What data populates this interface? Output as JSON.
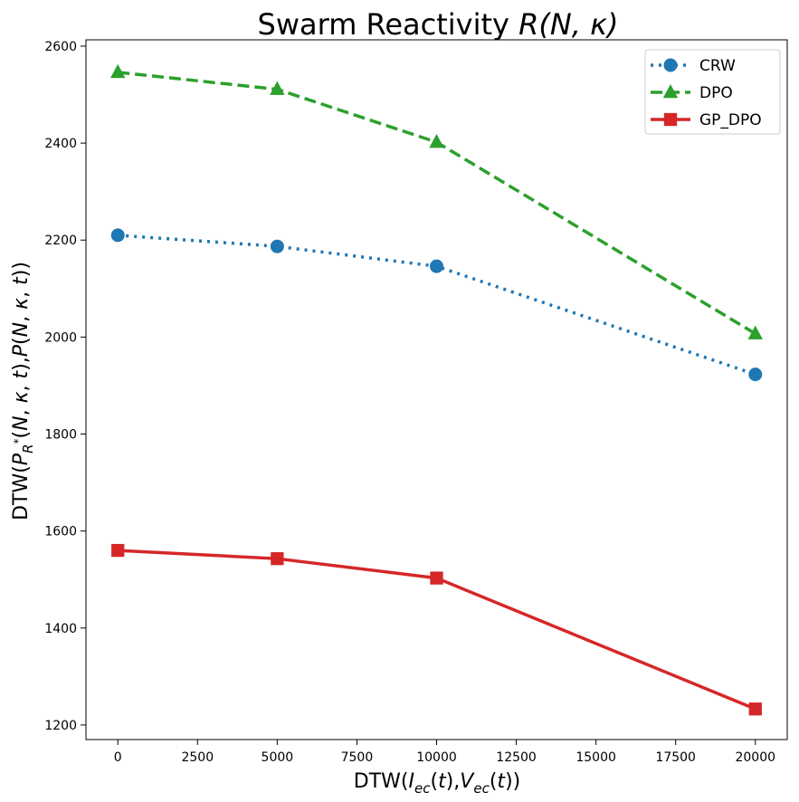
{
  "chart_data": {
    "type": "line",
    "title": "Swarm Reactivity R(N, κ)",
    "title_parts": {
      "text": "Swarm Reactivity ",
      "math": "R(N, κ)"
    },
    "xlabel": "DTW(I_ec(t),V_ec(t))",
    "ylabel": "DTW(P_R*(N, κ, t),P(N, κ, t))",
    "x": [
      0,
      5000,
      10000,
      20000
    ],
    "xlim": [
      -1000,
      21000
    ],
    "ylim": [
      1170,
      2613
    ],
    "xticks": [
      0,
      2500,
      5000,
      7500,
      10000,
      12500,
      15000,
      17500,
      20000
    ],
    "yticks": [
      1200,
      1400,
      1600,
      1800,
      2000,
      2200,
      2400,
      2600
    ],
    "grid": false,
    "legend_position": "top-right",
    "series": [
      {
        "name": "CRW",
        "values": [
          2210,
          2187,
          2146,
          1923
        ],
        "color": "#1f77b4",
        "line_style": "dotted",
        "marker": "circle"
      },
      {
        "name": "DPO",
        "values": [
          2546,
          2511,
          2402,
          2007
        ],
        "color": "#2ca02c",
        "line_style": "dashed",
        "marker": "triangle"
      },
      {
        "name": "GP_DPO",
        "values": [
          1560,
          1543,
          1503,
          1233
        ],
        "color": "#d62728",
        "line_style": "solid",
        "marker": "square"
      }
    ]
  }
}
